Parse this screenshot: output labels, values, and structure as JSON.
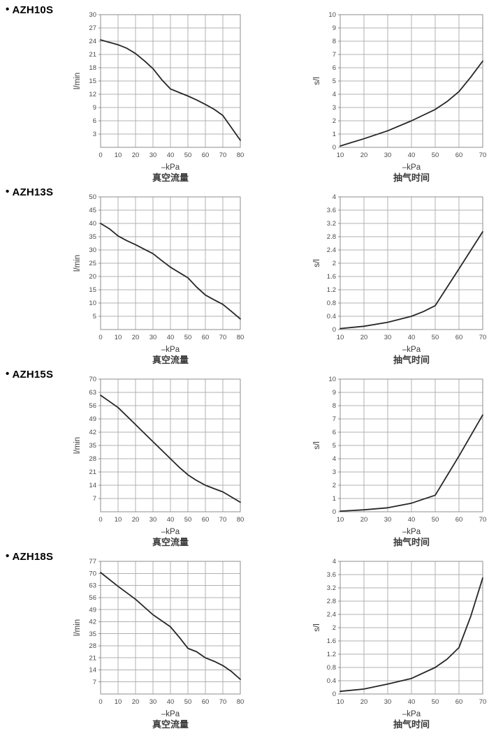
{
  "page": {
    "background": "#ffffff"
  },
  "colors": {
    "grid": "#b0b0b0",
    "axis": "#8c8c8c",
    "curve": "#262626",
    "tick_text": "#4a4a4a",
    "label_text": "#3a3a3a",
    "header_text": "#000000"
  },
  "sections": [
    {
      "bullet": "•",
      "model": "AZH10S"
    },
    {
      "bullet": "•",
      "model": "AZH13S"
    },
    {
      "bullet": "•",
      "model": "AZH15S"
    },
    {
      "bullet": "•",
      "model": "AZH18S"
    }
  ],
  "chart_data": [
    {
      "model": "AZH10S",
      "kind": "flow",
      "type": "line",
      "title": "真空流量",
      "xlabel": "–kPa",
      "ylabel": "l/min",
      "xlim": [
        0,
        80
      ],
      "xticks": [
        0,
        10,
        20,
        30,
        40,
        50,
        60,
        70,
        80
      ],
      "ylim": [
        0,
        30
      ],
      "yticks": [
        3,
        6,
        9,
        12,
        15,
        18,
        21,
        24,
        27,
        30
      ],
      "grid": true,
      "legend": "none",
      "x": [
        0,
        10,
        15,
        20,
        25,
        30,
        35,
        40,
        45,
        50,
        55,
        60,
        65,
        70,
        80
      ],
      "y": [
        24.3,
        23.2,
        22.4,
        21.2,
        19.6,
        17.8,
        15.3,
        13.2,
        12.4,
        11.6,
        10.7,
        9.7,
        8.6,
        7.2,
        1.6
      ]
    },
    {
      "model": "AZH10S",
      "kind": "time",
      "type": "line",
      "title": "抽气时间",
      "xlabel": "–kPa",
      "ylabel": "s/l",
      "xlim": [
        10,
        70
      ],
      "xticks": [
        10,
        20,
        30,
        40,
        50,
        60,
        70
      ],
      "ylim": [
        0,
        10
      ],
      "yticks": [
        0,
        1,
        2,
        3,
        4,
        5,
        6,
        7,
        8,
        9,
        10
      ],
      "grid": true,
      "legend": "none",
      "x": [
        10,
        20,
        30,
        40,
        50,
        55,
        60,
        65,
        70
      ],
      "y": [
        0.1,
        0.65,
        1.25,
        2.0,
        2.85,
        3.45,
        4.2,
        5.3,
        6.5
      ]
    },
    {
      "model": "AZH13S",
      "kind": "flow",
      "type": "line",
      "title": "真空流量",
      "xlabel": "–kPa",
      "ylabel": "l/min",
      "xlim": [
        0,
        80
      ],
      "xticks": [
        0,
        10,
        20,
        30,
        40,
        50,
        60,
        70,
        80
      ],
      "ylim": [
        0,
        50
      ],
      "yticks": [
        5,
        10,
        15,
        20,
        25,
        30,
        35,
        40,
        45,
        50
      ],
      "grid": true,
      "legend": "none",
      "x": [
        0,
        5,
        10,
        15,
        20,
        25,
        30,
        35,
        40,
        45,
        50,
        55,
        60,
        65,
        70,
        75,
        80
      ],
      "y": [
        40,
        38,
        35.3,
        33.5,
        32,
        30.3,
        28.6,
        26,
        23.5,
        21.5,
        19.5,
        16,
        13,
        11.2,
        9.5,
        6.8,
        4
      ]
    },
    {
      "model": "AZH13S",
      "kind": "time",
      "type": "line",
      "title": "抽气时间",
      "xlabel": "–kPa",
      "ylabel": "s/l",
      "xlim": [
        10,
        70
      ],
      "xticks": [
        10,
        20,
        30,
        40,
        50,
        60,
        70
      ],
      "ylim": [
        0,
        4
      ],
      "yticks": [
        0,
        0.4,
        0.8,
        1.2,
        1.6,
        2,
        2.4,
        2.8,
        3.2,
        3.6,
        4
      ],
      "grid": true,
      "legend": "none",
      "x": [
        10,
        20,
        30,
        40,
        45,
        50,
        60,
        70
      ],
      "y": [
        0.03,
        0.1,
        0.22,
        0.4,
        0.54,
        0.72,
        1.83,
        2.95
      ]
    },
    {
      "model": "AZH15S",
      "kind": "flow",
      "type": "line",
      "title": "真空流量",
      "xlabel": "–kPa",
      "ylabel": "l/min",
      "xlim": [
        0,
        80
      ],
      "xticks": [
        0,
        10,
        20,
        30,
        40,
        50,
        60,
        70,
        80
      ],
      "ylim": [
        0,
        70
      ],
      "yticks": [
        7,
        14,
        21,
        28,
        35,
        42,
        49,
        56,
        63,
        70
      ],
      "grid": true,
      "legend": "none",
      "x": [
        0,
        10,
        20,
        30,
        40,
        45,
        50,
        55,
        60,
        65,
        70,
        80
      ],
      "y": [
        61.5,
        55,
        46,
        37,
        28,
        23.5,
        19.5,
        16.5,
        14,
        12.2,
        10.5,
        5
      ]
    },
    {
      "model": "AZH15S",
      "kind": "time",
      "type": "line",
      "title": "抽气时间",
      "xlabel": "–kPa",
      "ylabel": "s/l",
      "xlim": [
        10,
        70
      ],
      "xticks": [
        10,
        20,
        30,
        40,
        50,
        60,
        70
      ],
      "ylim": [
        0,
        10
      ],
      "yticks": [
        0,
        1,
        2,
        3,
        4,
        5,
        6,
        7,
        8,
        9,
        10
      ],
      "grid": true,
      "legend": "none",
      "x": [
        10,
        20,
        30,
        40,
        50,
        60,
        70
      ],
      "y": [
        0.05,
        0.15,
        0.3,
        0.65,
        1.25,
        4.2,
        7.3
      ]
    },
    {
      "model": "AZH18S",
      "kind": "flow",
      "type": "line",
      "title": "真空流量",
      "xlabel": "–kPa",
      "ylabel": "l/min",
      "xlim": [
        0,
        80
      ],
      "xticks": [
        0,
        10,
        20,
        30,
        40,
        50,
        60,
        70,
        80
      ],
      "ylim": [
        0,
        77
      ],
      "yticks": [
        7,
        14,
        21,
        28,
        35,
        42,
        49,
        56,
        63,
        70,
        77
      ],
      "grid": true,
      "legend": "none",
      "x": [
        0,
        10,
        20,
        30,
        35,
        40,
        45,
        50,
        55,
        60,
        65,
        70,
        75,
        80
      ],
      "y": [
        70.5,
        62.5,
        55,
        46,
        42.5,
        39,
        33,
        26.5,
        24.5,
        21,
        19,
        16.5,
        13,
        8.5
      ]
    },
    {
      "model": "AZH18S",
      "kind": "time",
      "type": "line",
      "title": "抽气时间",
      "xlabel": "–kPa",
      "ylabel": "s/l",
      "xlim": [
        10,
        70
      ],
      "xticks": [
        10,
        20,
        30,
        40,
        50,
        60,
        70
      ],
      "ylim": [
        0,
        4
      ],
      "yticks": [
        0,
        0.4,
        0.8,
        1.2,
        1.6,
        2,
        2.4,
        2.8,
        3.2,
        3.6,
        4
      ],
      "grid": true,
      "legend": "none",
      "x": [
        10,
        20,
        30,
        40,
        50,
        55,
        60,
        65,
        70
      ],
      "y": [
        0.08,
        0.15,
        0.3,
        0.47,
        0.8,
        1.05,
        1.4,
        2.35,
        3.5
      ]
    }
  ]
}
